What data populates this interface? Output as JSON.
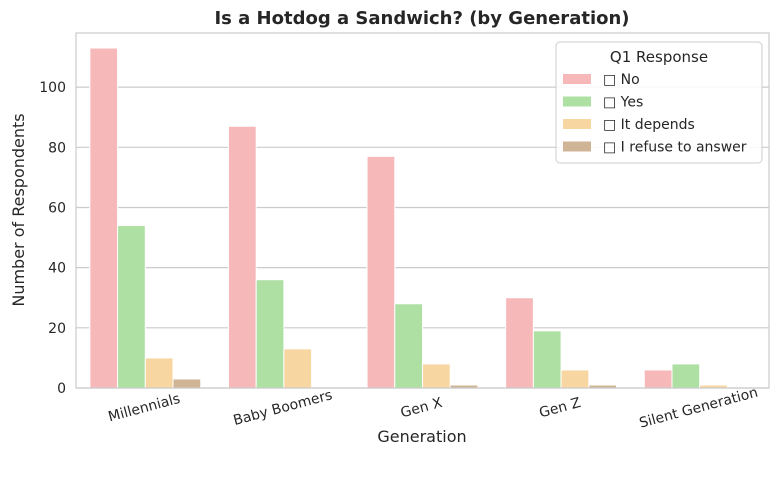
{
  "chart_data": {
    "type": "bar",
    "title": "Is a Hotdog a Sandwich? (by Generation)",
    "xlabel": "Generation",
    "ylabel": "Number of Respondents",
    "ylim": [
      0,
      118
    ],
    "yticks": [
      0,
      20,
      40,
      60,
      80,
      100
    ],
    "grid": "horizontal",
    "legend_title": "Q1 Response",
    "legend_position": "top-right",
    "categories": [
      "Millennials",
      "Baby Boomers",
      "Gen X",
      "Gen Z",
      "Silent Generation"
    ],
    "series": [
      {
        "name": "□ No",
        "color": "#f6b8b8",
        "values": [
          113,
          87,
          77,
          30,
          6
        ]
      },
      {
        "name": "□ Yes",
        "color": "#aee0a4",
        "values": [
          54,
          36,
          28,
          19,
          8
        ]
      },
      {
        "name": "□ It depends",
        "color": "#f7d6a1",
        "values": [
          10,
          13,
          8,
          6,
          1
        ]
      },
      {
        "name": "□ I refuse to answer",
        "color": "#cfb595",
        "values": [
          3,
          0,
          1,
          1,
          0
        ]
      }
    ]
  }
}
